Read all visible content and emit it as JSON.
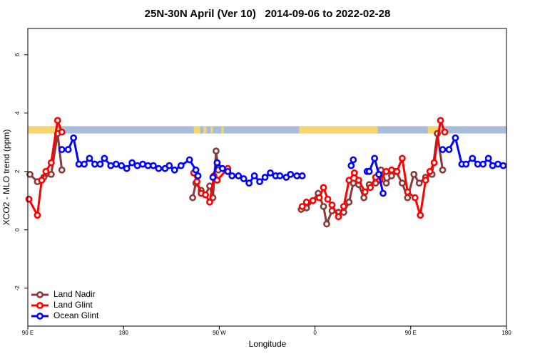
{
  "chart_data": {
    "type": "line",
    "title": "25N-30N April (Ver 10)   2014-09-06 to 2022-02-28",
    "x_label": "Longitude",
    "y_label": "XCO2 - MLO trend (ppm)",
    "xlim": [
      90,
      540
    ],
    "ylim": [
      -3.3,
      6.9
    ],
    "xticks": [
      {
        "value": 90,
        "label": "90 E"
      },
      180,
      {
        "value": 270,
        "label": "90 W"
      },
      {
        "value": 360,
        "label": "0"
      },
      {
        "value": 450,
        "label": "90 E"
      },
      {
        "value": 540,
        "label": "180"
      }
    ],
    "yticks": [
      -2,
      0,
      2,
      4,
      6
    ],
    "legend": "bottom-left",
    "band": {
      "ylim": [
        3.3,
        3.55
      ],
      "color": "#a7bdda",
      "land_color": "#f5d56f",
      "land": [
        [
          90,
          119
        ],
        [
          246,
          252
        ],
        [
          255,
          258
        ],
        [
          262,
          264
        ],
        [
          272,
          274
        ],
        [
          345,
          419
        ],
        [
          466,
          478
        ]
      ]
    },
    "series": [
      {
        "name": "Land Nadir",
        "color": "#8b3a3a",
        "x": [
          92,
          99,
          105,
          112,
          118,
          122,
          null,
          245,
          248,
          253,
          257,
          261,
          264,
          267,
          269,
          null,
          347,
          352,
          358,
          363,
          368,
          371,
          376,
          382,
          387,
          392,
          396,
          401,
          406,
          411,
          417,
          422,
          427,
          432,
          436,
          442,
          447,
          453,
          458,
          464,
          470,
          475,
          480
        ],
        "values": [
          1.9,
          1.65,
          1.8,
          1.9,
          3.3,
          2.05,
          null,
          1.1,
          1.6,
          1.35,
          1.2,
          1.5,
          1.1,
          2.7,
          2.05,
          null,
          0.7,
          0.75,
          1.0,
          1.25,
          0.8,
          0.2,
          0.65,
          0.6,
          0.6,
          0.95,
          1.6,
          1.55,
          1.1,
          1.55,
          1.6,
          2.05,
          1.6,
          1.85,
          2.0,
          1.6,
          1.1,
          1.9,
          1.6,
          1.8,
          1.9,
          3.3,
          2.05
        ]
      },
      {
        "name": "Land Glint",
        "color": "#ff0000",
        "x": [
          91,
          99,
          103,
          107,
          112,
          118,
          122,
          null,
          246,
          249,
          253,
          257,
          261,
          265,
          268,
          278,
          null,
          348,
          352,
          358,
          364,
          368,
          372,
          376,
          382,
          387,
          392,
          397,
          401,
          407,
          412,
          417,
          421,
          427,
          432,
          437,
          442,
          447,
          454,
          459,
          464,
          468,
          472,
          478,
          482
        ],
        "values": [
          1.05,
          0.5,
          1.7,
          2.0,
          2.3,
          3.75,
          3.35,
          null,
          1.95,
          1.65,
          1.25,
          1.2,
          0.95,
          1.85,
          1.7,
          2.1,
          null,
          0.8,
          0.95,
          1.0,
          1.1,
          1.45,
          1.05,
          0.85,
          0.45,
          0.8,
          1.7,
          1.95,
          1.7,
          1.3,
          1.45,
          1.8,
          1.7,
          2.0,
          2.05,
          2.0,
          2.45,
          1.3,
          1.1,
          0.5,
          1.7,
          2.0,
          2.3,
          3.75,
          3.35
        ]
      },
      {
        "name": "Ocean Glint",
        "color": "#0000ff",
        "x": [
          122,
          128,
          133,
          138,
          143,
          148,
          153,
          158,
          162,
          168,
          173,
          178,
          183,
          188,
          193,
          198,
          203,
          208,
          213,
          219,
          223,
          228,
          234,
          242,
          248,
          250,
          null,
          264,
          268,
          273,
          278,
          282,
          288,
          293,
          298,
          303,
          308,
          313,
          318,
          323,
          327,
          333,
          337,
          343,
          348,
          null,
          394,
          396,
          null,
          409,
          411,
          416,
          420,
          424,
          null,
          480,
          486,
          492,
          498,
          502,
          508,
          513,
          518,
          523,
          527,
          532,
          537
        ],
        "values": [
          2.75,
          2.75,
          3.15,
          2.25,
          2.25,
          2.45,
          2.25,
          2.25,
          2.45,
          2.2,
          2.25,
          2.2,
          2.1,
          2.3,
          2.2,
          2.25,
          2.2,
          2.2,
          2.1,
          2.1,
          2.2,
          2.05,
          2.2,
          2.4,
          2.05,
          1.85,
          null,
          1.8,
          2.3,
          2.1,
          2.0,
          1.85,
          1.85,
          1.75,
          1.6,
          1.85,
          1.65,
          1.8,
          1.95,
          1.85,
          1.85,
          1.8,
          1.9,
          1.85,
          1.85,
          null,
          2.2,
          2.4,
          null,
          2.0,
          2.0,
          2.45,
          1.9,
          1.25,
          null,
          2.75,
          2.75,
          3.15,
          2.25,
          2.25,
          2.45,
          2.25,
          2.25,
          2.45,
          2.2,
          2.25,
          2.2
        ]
      }
    ]
  }
}
